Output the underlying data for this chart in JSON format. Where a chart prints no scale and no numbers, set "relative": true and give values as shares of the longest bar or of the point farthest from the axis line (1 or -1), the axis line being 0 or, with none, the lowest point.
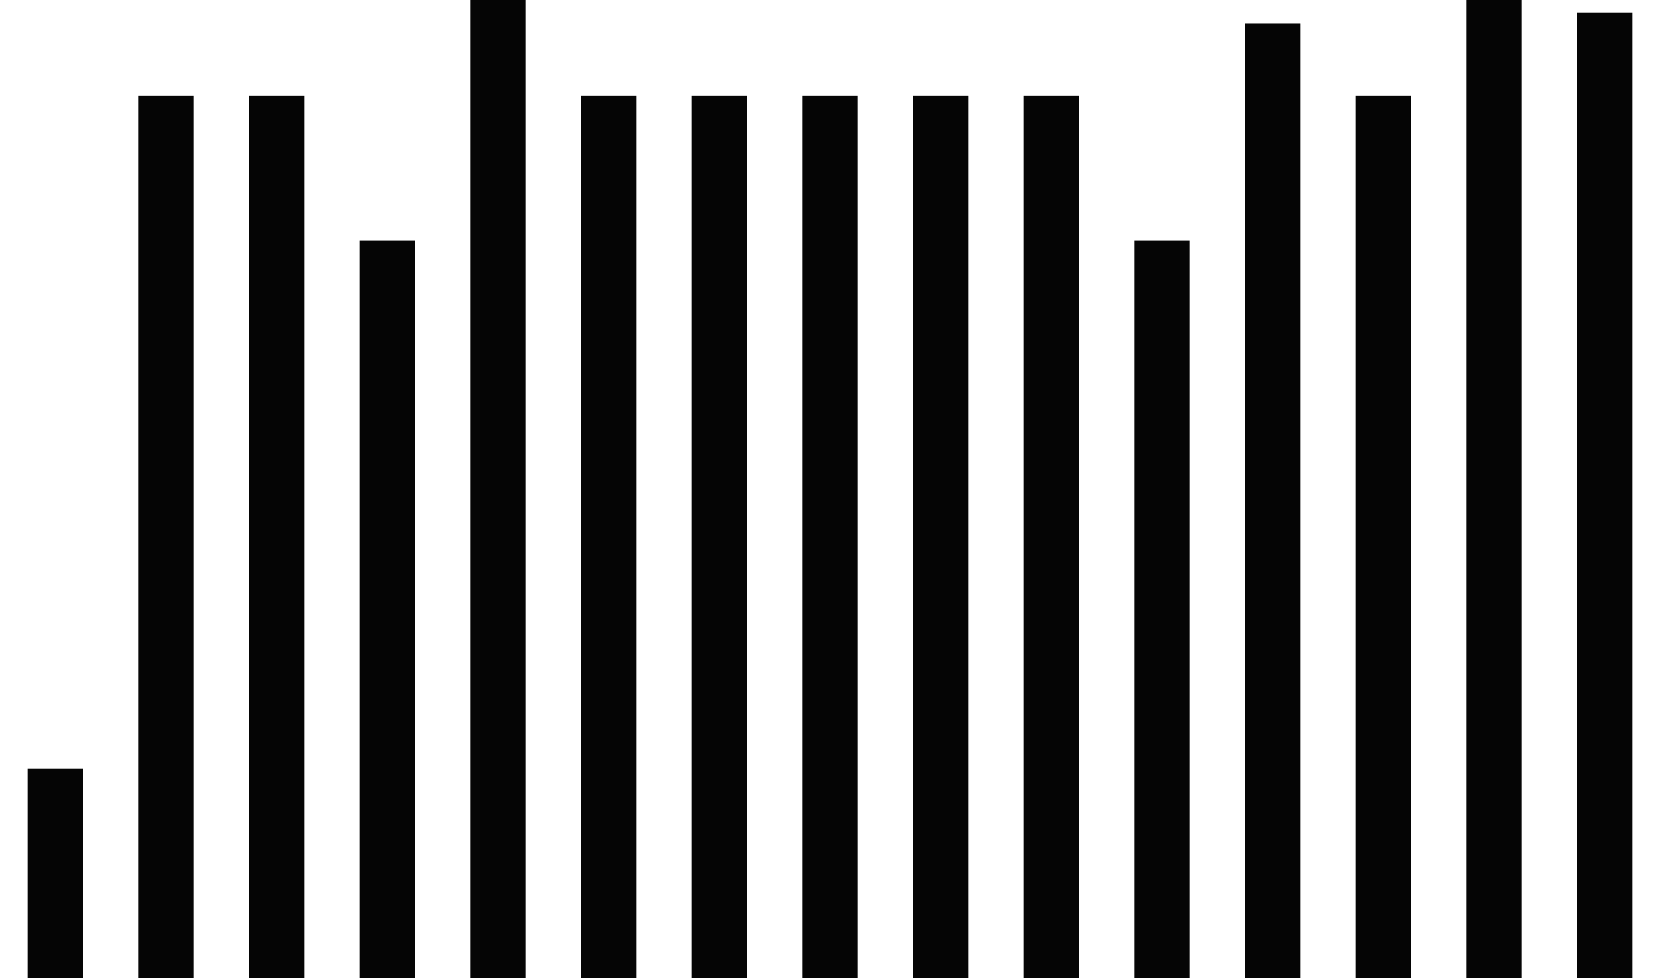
{
  "chart_data": {
    "type": "bar",
    "relative": true,
    "categories": [
      null,
      null,
      null,
      null,
      null,
      null,
      null,
      null,
      null,
      null,
      null,
      null,
      null,
      null,
      null
    ],
    "values": [
      0.214,
      0.902,
      0.902,
      0.754,
      1,
      0.902,
      0.902,
      0.902,
      0.902,
      0.902,
      0.754,
      0.976,
      0.902,
      1,
      0.987
    ],
    "color": "#050505"
  }
}
